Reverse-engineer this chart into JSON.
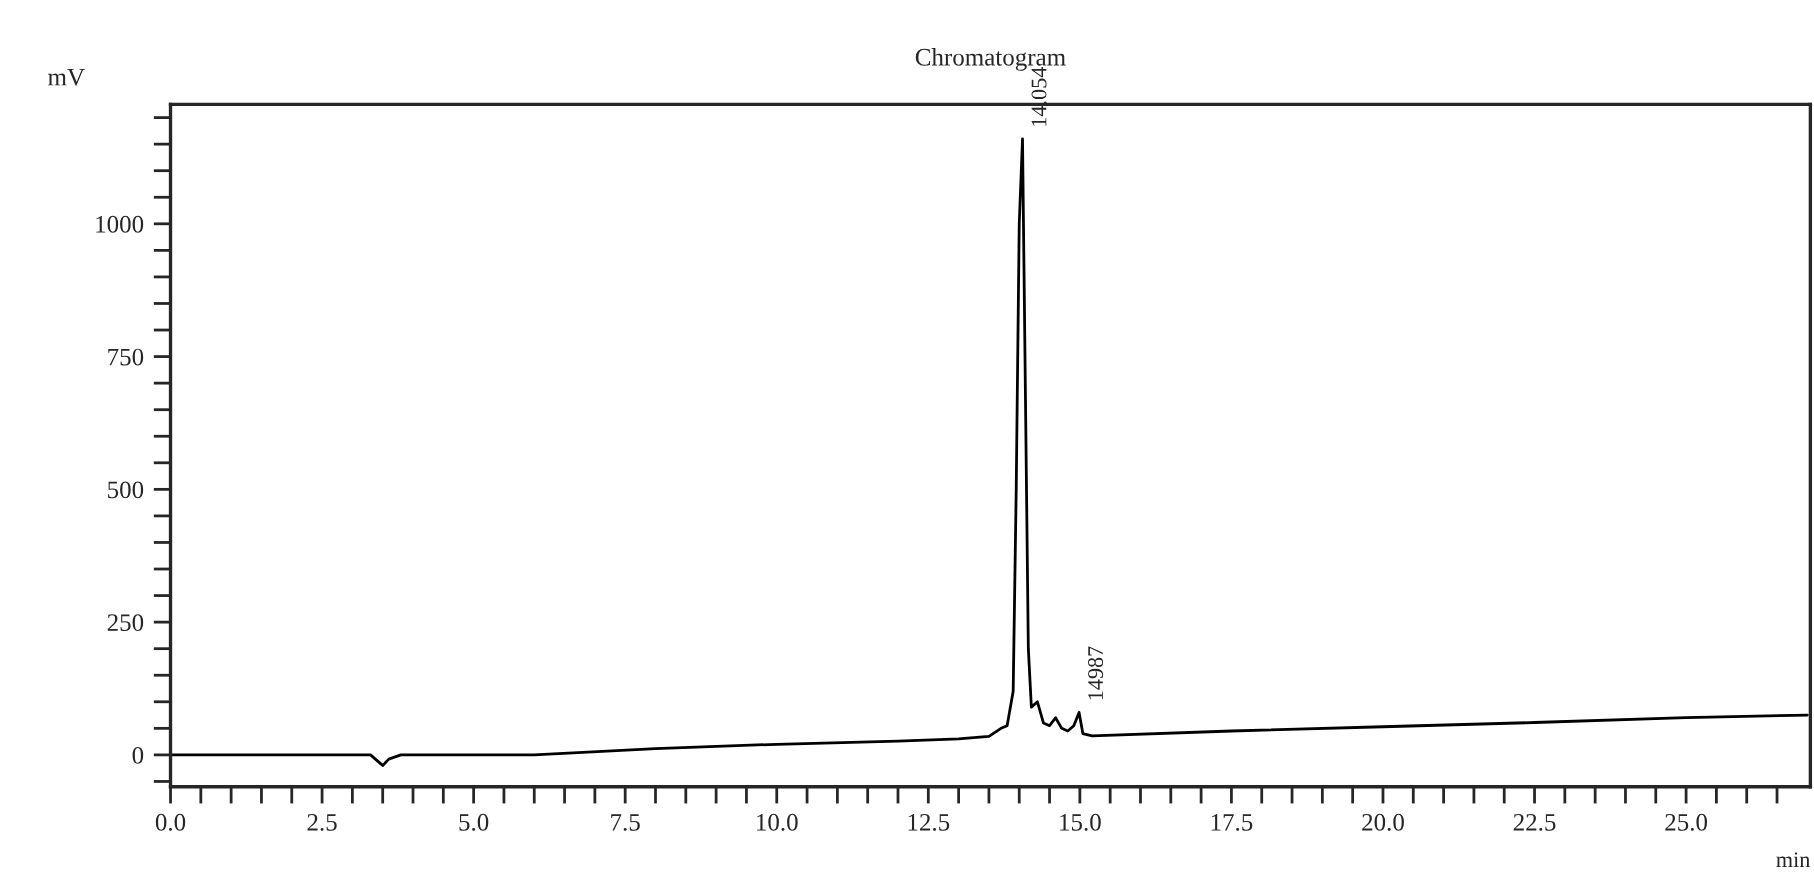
{
  "chart_data": {
    "type": "line",
    "title": "Chromatogram",
    "xlabel": "min",
    "ylabel": "mV",
    "x": [
      0,
      3.3,
      3.45,
      3.5,
      3.6,
      3.8,
      6.0,
      8.0,
      10.0,
      12.0,
      13.0,
      13.5,
      13.7,
      13.8,
      13.9,
      13.95,
      14.0,
      14.054,
      14.1,
      14.15,
      14.2,
      14.3,
      14.4,
      14.5,
      14.6,
      14.7,
      14.8,
      14.9,
      14.987,
      15.05,
      15.2,
      17.5,
      20.0,
      22.5,
      25.0,
      27.0
    ],
    "series": [
      {
        "color": "#000000",
        "values": [
          0,
          0,
          -15,
          -20,
          -8,
          0,
          0,
          12,
          20,
          26,
          30,
          35,
          50,
          55,
          120,
          500,
          1000,
          1160,
          700,
          200,
          90,
          100,
          60,
          55,
          70,
          50,
          45,
          55,
          80,
          40,
          36,
          45,
          53,
          61,
          70,
          75
        ]
      }
    ],
    "annotations": [
      {
        "text": "14.054",
        "x": 14.054,
        "y": 1160
      },
      {
        "text": "14987",
        "x": 14.987,
        "y": 80
      }
    ],
    "xlim": [
      0,
      27.05
    ],
    "ylim": [
      -60,
      1225
    ],
    "xticks": [
      {
        "value": 0,
        "label": "0.0"
      },
      {
        "value": 0.5,
        "label": null
      },
      {
        "value": 1.0,
        "label": null
      },
      {
        "value": 1.5,
        "label": null
      },
      {
        "value": 2.0,
        "label": null
      },
      {
        "value": 2.5,
        "label": "2.5"
      },
      {
        "value": 3.0,
        "label": null
      },
      {
        "value": 3.5,
        "label": null
      },
      {
        "value": 4.0,
        "label": null
      },
      {
        "value": 4.5,
        "label": null
      },
      {
        "value": 5.0,
        "label": "5.0"
      },
      {
        "value": 5.5,
        "label": null
      },
      {
        "value": 6.0,
        "label": null
      },
      {
        "value": 6.5,
        "label": null
      },
      {
        "value": 7.0,
        "label": null
      },
      {
        "value": 7.5,
        "label": "7.5"
      },
      {
        "value": 8.0,
        "label": null
      },
      {
        "value": 8.5,
        "label": null
      },
      {
        "value": 9.0,
        "label": null
      },
      {
        "value": 9.5,
        "label": null
      },
      {
        "value": 10.0,
        "label": "10.0"
      },
      {
        "value": 10.5,
        "label": null
      },
      {
        "value": 11.0,
        "label": null
      },
      {
        "value": 11.5,
        "label": null
      },
      {
        "value": 12.0,
        "label": null
      },
      {
        "value": 12.5,
        "label": "12.5"
      },
      {
        "value": 13.0,
        "label": null
      },
      {
        "value": 13.5,
        "label": null
      },
      {
        "value": 14.0,
        "label": null
      },
      {
        "value": 14.5,
        "label": null
      },
      {
        "value": 15.0,
        "label": "15.0"
      },
      {
        "value": 15.5,
        "label": null
      },
      {
        "value": 16.0,
        "label": null
      },
      {
        "value": 16.5,
        "label": null
      },
      {
        "value": 17.0,
        "label": null
      },
      {
        "value": 17.5,
        "label": "17.5"
      },
      {
        "value": 18.0,
        "label": null
      },
      {
        "value": 18.5,
        "label": null
      },
      {
        "value": 19.0,
        "label": null
      },
      {
        "value": 19.5,
        "label": null
      },
      {
        "value": 20.0,
        "label": "20.0"
      },
      {
        "value": 20.5,
        "label": null
      },
      {
        "value": 21.0,
        "label": null
      },
      {
        "value": 21.5,
        "label": null
      },
      {
        "value": 22.0,
        "label": null
      },
      {
        "value": 22.5,
        "label": "22.5"
      },
      {
        "value": 23.0,
        "label": null
      },
      {
        "value": 23.5,
        "label": null
      },
      {
        "value": 24.0,
        "label": null
      },
      {
        "value": 24.5,
        "label": null
      },
      {
        "value": 25.0,
        "label": "25.0"
      },
      {
        "value": 25.5,
        "label": null
      },
      {
        "value": 26.0,
        "label": null
      },
      {
        "value": 26.5,
        "label": null
      }
    ],
    "yticks": [
      {
        "value": -50,
        "label": null
      },
      0,
      {
        "value": 50,
        "label": null
      },
      {
        "value": 100,
        "label": null
      },
      {
        "value": 150,
        "label": null
      },
      {
        "value": 200,
        "label": null
      },
      250,
      {
        "value": 300,
        "label": null
      },
      {
        "value": 350,
        "label": null
      },
      {
        "value": 400,
        "label": null
      },
      {
        "value": 450,
        "label": null
      },
      500,
      {
        "value": 550,
        "label": null
      },
      {
        "value": 600,
        "label": null
      },
      {
        "value": 650,
        "label": null
      },
      {
        "value": 700,
        "label": null
      },
      750,
      {
        "value": 800,
        "label": null
      },
      {
        "value": 850,
        "label": null
      },
      {
        "value": 900,
        "label": null
      },
      {
        "value": 950,
        "label": null
      },
      1000,
      {
        "value": 1050,
        "label": null
      },
      {
        "value": 1100,
        "label": null
      },
      {
        "value": 1150,
        "label": null
      },
      {
        "value": 1200,
        "label": null
      }
    ],
    "grid": false,
    "legend": false,
    "marker": "none",
    "line_style": "solid"
  }
}
